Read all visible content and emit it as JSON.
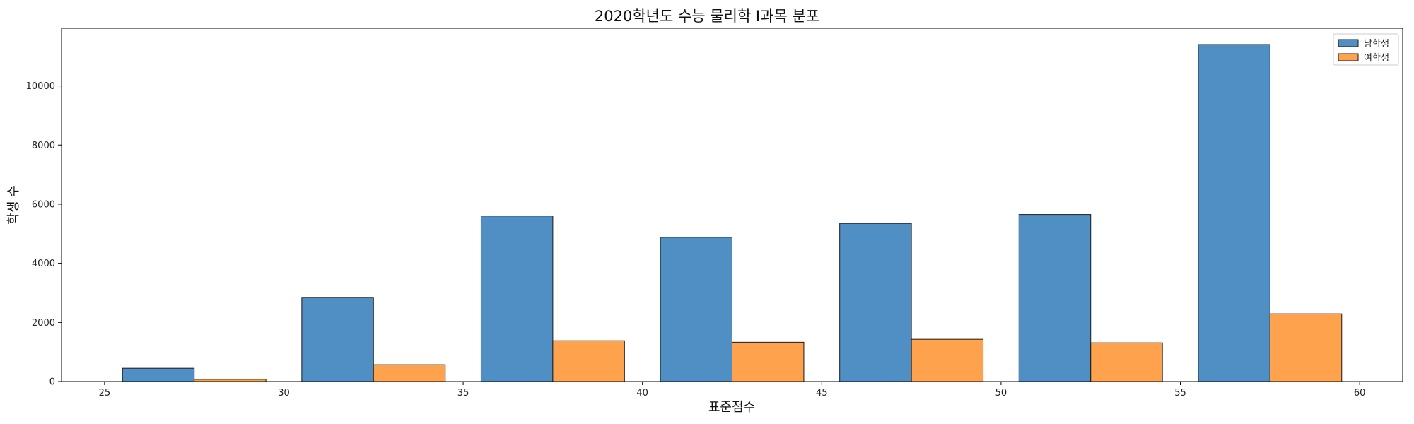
{
  "chart_data": {
    "type": "bar",
    "title": "2020학년도 수능 물리학 I과목 분포",
    "xlabel": "표준점수",
    "ylabel": "학생 수",
    "x_ticks": [
      25,
      30,
      35,
      40,
      45,
      50,
      55,
      60
    ],
    "y_ticks": [
      0,
      2000,
      4000,
      6000,
      8000,
      10000
    ],
    "xlim": [
      23.8,
      61.2
    ],
    "ylim": [
      0,
      11950
    ],
    "bin_starts": [
      25.5,
      30.5,
      35.5,
      40.5,
      45.5,
      50.5,
      55.5
    ],
    "bin_width": 4,
    "series": [
      {
        "name": "남학생",
        "color": "#4f8fc4",
        "values": [
          450,
          2850,
          5600,
          4880,
          5350,
          5650,
          11400
        ]
      },
      {
        "name": "여학생",
        "color": "#ffa24e",
        "values": [
          75,
          570,
          1380,
          1330,
          1430,
          1310,
          2290
        ]
      }
    ],
    "legend_position": "top-right",
    "grid": false
  }
}
